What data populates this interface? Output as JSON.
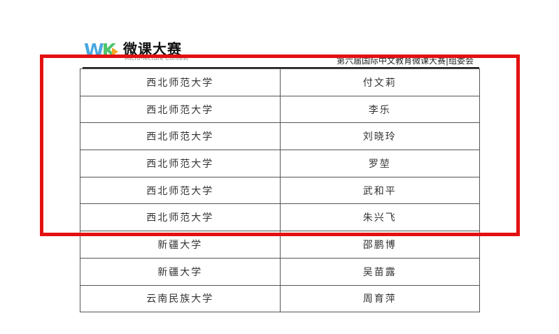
{
  "header": {
    "logo_title": "微课大赛",
    "logo_subtitle": "Micro-lecture Contest",
    "logo_mark": "WK",
    "organizer": "第六届国际中文教育微课大赛|组委会"
  },
  "table": {
    "rows": [
      {
        "school": "西北师范大学",
        "name": "付文莉"
      },
      {
        "school": "西北师范大学",
        "name": "李乐"
      },
      {
        "school": "西北师范大学",
        "name": "刘晓玲"
      },
      {
        "school": "西北师范大学",
        "name": "罗堃"
      },
      {
        "school": "西北师范大学",
        "name": "武和平"
      },
      {
        "school": "西北师范大学",
        "name": "朱兴飞"
      },
      {
        "school": "新疆大学",
        "name": "邵鹏博"
      },
      {
        "school": "新疆大学",
        "name": "吴苗露"
      },
      {
        "school": "云南民族大学",
        "name": "周育萍"
      }
    ]
  },
  "highlight": {
    "color": "#e41010"
  }
}
